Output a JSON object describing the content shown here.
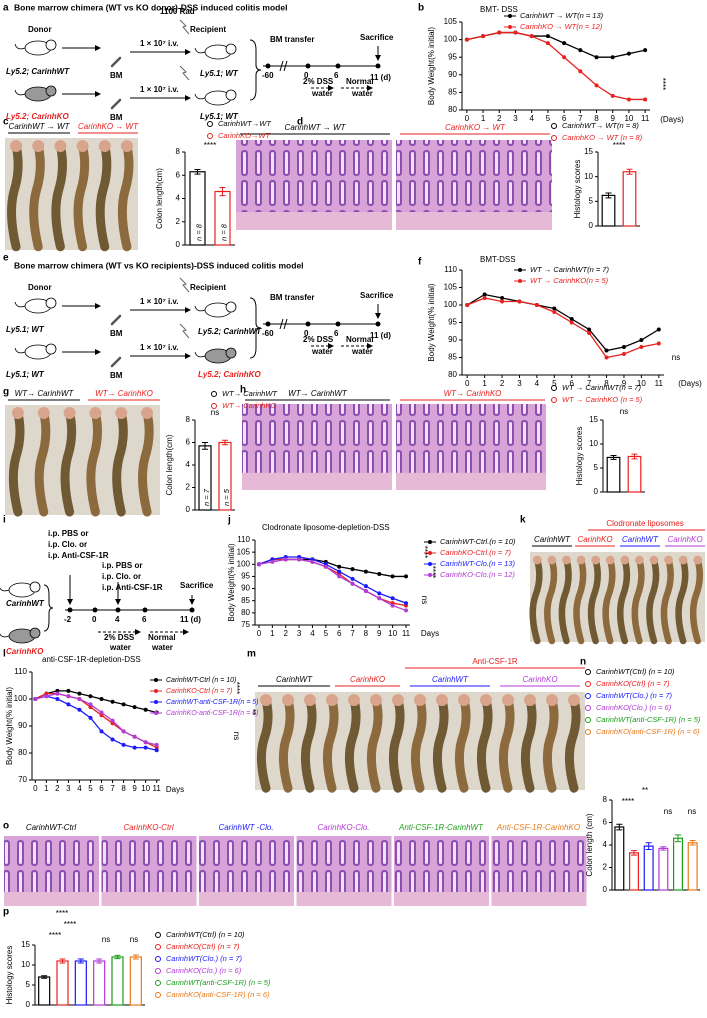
{
  "panel_labels": [
    "a",
    "b",
    "c",
    "d",
    "e",
    "f",
    "g",
    "h",
    "i",
    "j",
    "k",
    "l",
    "m",
    "n",
    "o",
    "p"
  ],
  "schematic_a": {
    "title": "Bone marrow chimera (WT vs KO donor)-DSS induced colitis model",
    "labels": [
      "Donor",
      "Ly5.2; CarinhWT",
      "Ly5.2; CarinhKO",
      "BM",
      "BM",
      "1 × 10⁷ i.v.",
      "1 × 10⁷ i.v.",
      "1100 Rad",
      "Recipient",
      "Ly5.1; WT",
      "Ly5.1; WT",
      "BM transfer",
      "Sacrifice",
      "-60",
      "0",
      "6",
      "11 (d)",
      "2% DSS",
      "water",
      "Normal",
      "water"
    ]
  },
  "schematic_e": {
    "title": "Bone marrow chimera (WT vs KO recipients)-DSS induced colitis model",
    "labels": [
      "Donor",
      "Ly5.1; WT",
      "Ly5.1; WT",
      "BM",
      "BM",
      "1 × 10⁷ i.v.",
      "1 × 10⁷ i.v.",
      "Recipient",
      "Ly5.2; CarinhWT",
      "Ly5.2; CarinhKO",
      "BM transfer",
      "Sacrifice",
      "-60",
      "0",
      "6",
      "11 (d)",
      "2% DSS",
      "water",
      "Normal",
      "water"
    ]
  },
  "schematic_i": {
    "labels": [
      "i.p. PBS or",
      "i.p. Clo. or",
      "i.p. Anti-CSF-1R",
      "i.p. PBS or",
      "i.p. Clo. or",
      "i.p. Anti-CSF-1R",
      "CarinhWT",
      "CarinhKO",
      "Sacrifice",
      "-2",
      "0",
      "4",
      "6",
      "11 (d)",
      "2% DSS",
      "water",
      "Normal",
      "water"
    ]
  },
  "image_labels": {
    "c": [
      "CarinhWT → WT",
      "CarinhKO → WT"
    ],
    "d": [
      "CarinhWT → WT",
      "CarinhKO → WT"
    ],
    "g": [
      "WT→ CarinhWT",
      "WT→ CarinhKO"
    ],
    "h": [
      "WT→ CarinhWT",
      "WT→ CarinhKO"
    ],
    "k": [
      "Clodronate liposomes",
      "CarinhWT",
      "CarinhKO",
      "CarinhWT",
      "CarinhKO"
    ],
    "m": [
      "Anti-CSF-1R",
      "CarinhWT",
      "CarinhKO",
      "CarinhWT",
      "CarinhKO"
    ],
    "o": [
      "CarinhWT-Ctrl",
      "CarinhKO-Ctrl",
      "CarinhWT -Clo.",
      "CarinhKO-Clo.",
      "Anti-CSF-1R-CarinhWT",
      "Anti-CSF-1R-CarinhKO"
    ]
  },
  "chart_data": [
    {
      "type": "line",
      "title": "BMT- DSS",
      "y_label": "Body Weight(% initial)",
      "x_label": "(Days)",
      "x": [
        0,
        1,
        2,
        3,
        4,
        5,
        6,
        7,
        8,
        9,
        10,
        11
      ],
      "xlim": [
        -0.3,
        11.3
      ],
      "xticks": [
        0,
        1,
        2,
        3,
        4,
        5,
        6,
        7,
        8,
        9,
        10,
        11
      ],
      "ylim": [
        80,
        105
      ],
      "yticks": [
        80,
        85,
        90,
        95,
        100,
        105
      ],
      "series": [
        {
          "name": "CarinhWT → WT(n = 13)",
          "color": "#000000",
          "values": [
            100,
            101,
            102,
            102,
            101,
            101,
            99,
            97,
            95,
            95,
            96,
            97
          ]
        },
        {
          "name": "CarinhKO → WT(n = 12)",
          "color": "#e8211f",
          "values": [
            100,
            101,
            102,
            102,
            101,
            99,
            95,
            91,
            87,
            84,
            83,
            83
          ]
        }
      ],
      "annotations": [
        "****"
      ]
    },
    {
      "type": "bar",
      "y_label": "Colon length(cm)",
      "ylim": [
        0,
        8
      ],
      "yticks": [
        0,
        2,
        4,
        6,
        8
      ],
      "series": [
        {
          "name": "CarinhWT→WT",
          "color": "#000000",
          "values": [
            6.3
          ],
          "errors": [
            0.2
          ],
          "n_label": "n = 8"
        },
        {
          "name": "CarinhKO→WT",
          "color": "#e8211f",
          "values": [
            4.6
          ],
          "errors": [
            0.35
          ],
          "n_label": "n = 8"
        }
      ],
      "annotations": [
        "****"
      ]
    },
    {
      "type": "bar",
      "y_label": "Histology scores",
      "ylim": [
        0,
        15
      ],
      "yticks": [
        0,
        5,
        10,
        15
      ],
      "series": [
        {
          "name": "CarinhWT→ WT(n = 8)",
          "color": "#000000",
          "values": [
            6.2
          ],
          "errors": [
            0.5
          ]
        },
        {
          "name": "CarinhKO → WT (n = 8)",
          "color": "#e8211f",
          "values": [
            11
          ],
          "errors": [
            0.5
          ]
        }
      ],
      "annotations": [
        "****"
      ]
    },
    {
      "type": "line",
      "title": "BMT-DSS",
      "y_label": "Body Weight(% initial)",
      "x_label": "(Days)",
      "x": [
        0,
        1,
        2,
        3,
        4,
        5,
        6,
        7,
        8,
        9,
        10,
        11
      ],
      "xlim": [
        -0.3,
        11.3
      ],
      "xticks": [
        0,
        1,
        2,
        3,
        4,
        5,
        6,
        7,
        8,
        9,
        10,
        11
      ],
      "ylim": [
        80,
        110
      ],
      "yticks": [
        80,
        85,
        90,
        95,
        100,
        105,
        110
      ],
      "series": [
        {
          "name": "WT → CarinhWT(n = 7)",
          "color": "#000000",
          "values": [
            100,
            103,
            102,
            101,
            100,
            99,
            96,
            93,
            87,
            88,
            90,
            93
          ]
        },
        {
          "name": "WT → CarinhKO(n = 5)",
          "color": "#e8211f",
          "values": [
            100,
            102,
            101,
            101,
            100,
            98,
            95,
            92,
            85,
            86,
            88,
            89
          ]
        }
      ],
      "annotations": [
        "ns"
      ]
    },
    {
      "type": "bar",
      "y_label": "Colon length(cm)",
      "ylim": [
        0,
        8
      ],
      "yticks": [
        0,
        2,
        4,
        6,
        8
      ],
      "series": [
        {
          "name": "WT→ CarinhWT",
          "color": "#000000",
          "values": [
            5.7
          ],
          "errors": [
            0.3
          ],
          "n_label": "n = 7"
        },
        {
          "name": "WT→ CarinhKO",
          "color": "#e8211f",
          "values": [
            6.0
          ],
          "errors": [
            0.2
          ],
          "n_label": "n = 5"
        }
      ],
      "annotations": [
        "ns"
      ]
    },
    {
      "type": "bar",
      "y_label": "Histology scores",
      "ylim": [
        0,
        15
      ],
      "yticks": [
        0,
        5,
        10,
        15
      ],
      "series": [
        {
          "name": "WT → CarinhWT(n = 7)",
          "color": "#000000",
          "values": [
            7.2
          ],
          "errors": [
            0.4
          ]
        },
        {
          "name": "WT → CarinhKO (n = 5)",
          "color": "#e8211f",
          "values": [
            7.4
          ],
          "errors": [
            0.5
          ]
        }
      ],
      "annotations": [
        "ns"
      ]
    },
    {
      "type": "line",
      "title": "Clodronate liposome-depletion-DSS",
      "y_label": "Body Weight(% initial)",
      "x_label": "Days",
      "x": [
        0,
        1,
        2,
        3,
        4,
        5,
        6,
        7,
        8,
        9,
        10,
        11
      ],
      "xlim": [
        -0.3,
        11.3
      ],
      "xticks": [
        0,
        1,
        2,
        3,
        4,
        5,
        6,
        7,
        8,
        9,
        10,
        11
      ],
      "ylim": [
        75,
        110
      ],
      "yticks": [
        75,
        80,
        85,
        90,
        95,
        100,
        105,
        110
      ],
      "series": [
        {
          "name": "CarinhWT-Ctrl.(n = 10)",
          "color": "#000000",
          "values": [
            100,
            102,
            102,
            102,
            102,
            101,
            99,
            98,
            97,
            96,
            95,
            95
          ]
        },
        {
          "name": "CarinhKO-Ctrl.(n = 7)",
          "color": "#e8211f",
          "values": [
            100,
            102,
            102,
            102,
            101,
            99,
            96,
            92,
            89,
            86,
            84,
            83
          ]
        },
        {
          "name": "CarinhWT-Clo.(n = 13)",
          "color": "#1a1aff",
          "values": [
            100,
            102,
            103,
            103,
            102,
            100,
            97,
            94,
            91,
            88,
            86,
            84
          ]
        },
        {
          "name": "CarinhKO-Clo.(n = 12)",
          "color": "#b23ad6",
          "values": [
            100,
            101,
            102,
            102,
            101,
            99,
            95,
            92,
            89,
            86,
            83,
            81
          ]
        }
      ],
      "annotations": [
        "****",
        "****",
        "ns"
      ]
    },
    {
      "type": "line",
      "title": "anti-CSF-1R-depletion-DSS",
      "y_label": "Body Weight(% initial)",
      "x_label": "Days",
      "x": [
        0,
        1,
        2,
        3,
        4,
        5,
        6,
        7,
        8,
        9,
        10,
        11
      ],
      "xlim": [
        -0.3,
        11.3
      ],
      "xticks": [
        0,
        1,
        2,
        3,
        4,
        5,
        6,
        7,
        8,
        9,
        10,
        11
      ],
      "ylim": [
        70,
        110
      ],
      "yticks": [
        70,
        80,
        90,
        100,
        110
      ],
      "series": [
        {
          "name": "CarinhWT-Ctrl (n = 10)",
          "color": "#000000",
          "values": [
            100,
            102,
            103,
            103,
            102,
            101,
            100,
            99,
            98,
            97,
            96,
            95
          ]
        },
        {
          "name": "CarinhKO-Ctrl (n = 7)",
          "color": "#e8211f",
          "values": [
            100,
            102,
            102,
            101,
            100,
            97,
            94,
            91,
            88,
            86,
            84,
            82
          ]
        },
        {
          "name": "CarinhWT-anti-CSF-1R(n = 5)",
          "color": "#1a1aff",
          "values": [
            100,
            101,
            100,
            98,
            96,
            93,
            88,
            85,
            83,
            82,
            82,
            81
          ]
        },
        {
          "name": "CarinhKO-anti-CSF-1R(n = 6)",
          "color": "#b23ad6",
          "values": [
            100,
            101,
            102,
            101,
            100,
            98,
            95,
            92,
            88,
            86,
            84,
            83
          ]
        }
      ],
      "annotations": [
        "****",
        "**",
        "ns"
      ]
    },
    {
      "type": "bar",
      "y_label": "Colon length (cm)",
      "ylim": [
        0,
        8
      ],
      "yticks": [
        0,
        2,
        4,
        6,
        8
      ],
      "series": [
        {
          "name": "CarinhWT(Ctrl) (n = 10)",
          "color": "#000000",
          "values": [
            5.6
          ],
          "errors": [
            0.25
          ]
        },
        {
          "name": "CarinhKO(Ctrl) (n = 7)",
          "color": "#e8211f",
          "values": [
            3.3
          ],
          "errors": [
            0.2
          ]
        },
        {
          "name": "CarinhWT(Clo.) (n = 7)",
          "color": "#1a1aff",
          "values": [
            3.9
          ],
          "errors": [
            0.3
          ]
        },
        {
          "name": "CarinhKO(Clo.) (n = 6)",
          "color": "#b23ad6",
          "values": [
            3.7
          ],
          "errors": [
            0.15
          ]
        },
        {
          "name": "CarinhWT(anti-CSF-1R) (n = 5)",
          "color": "#1a9e1a",
          "values": [
            4.6
          ],
          "errors": [
            0.3
          ]
        },
        {
          "name": "CarinhKO(anti-CSF-1R) (n = 6)",
          "color": "#e87a1a",
          "values": [
            4.2
          ],
          "errors": [
            0.2
          ]
        }
      ],
      "annotations": [
        "**",
        "****",
        "ns",
        "ns"
      ]
    },
    {
      "type": "bar",
      "y_label": "Histology scores",
      "ylim": [
        0,
        15
      ],
      "yticks": [
        0,
        5,
        10,
        15
      ],
      "series": [
        {
          "name": "CarinhWT(Ctrl) (n = 10)",
          "color": "#000000",
          "values": [
            7
          ],
          "errors": [
            0.3
          ]
        },
        {
          "name": "CarinhKO(Ctrl) (n = 7)",
          "color": "#e8211f",
          "values": [
            11
          ],
          "errors": [
            0.5
          ]
        },
        {
          "name": "CarinhWT(Clo.) (n = 7)",
          "color": "#1a1aff",
          "values": [
            11
          ],
          "errors": [
            0.5
          ]
        },
        {
          "name": "CarinhKO(Clo.) (n = 6)",
          "color": "#b23ad6",
          "values": [
            11
          ],
          "errors": [
            0.5
          ]
        },
        {
          "name": "CarinhWT(anti-CSF-1R) (n = 5)",
          "color": "#1a9e1a",
          "values": [
            12
          ],
          "errors": [
            0.4
          ]
        },
        {
          "name": "CarinhKO(anti-CSF-1R) (n = 6)",
          "color": "#e87a1a",
          "values": [
            12
          ],
          "errors": [
            0.5
          ]
        }
      ],
      "annotations": [
        "****",
        "****",
        "****",
        "ns",
        "ns"
      ]
    }
  ]
}
